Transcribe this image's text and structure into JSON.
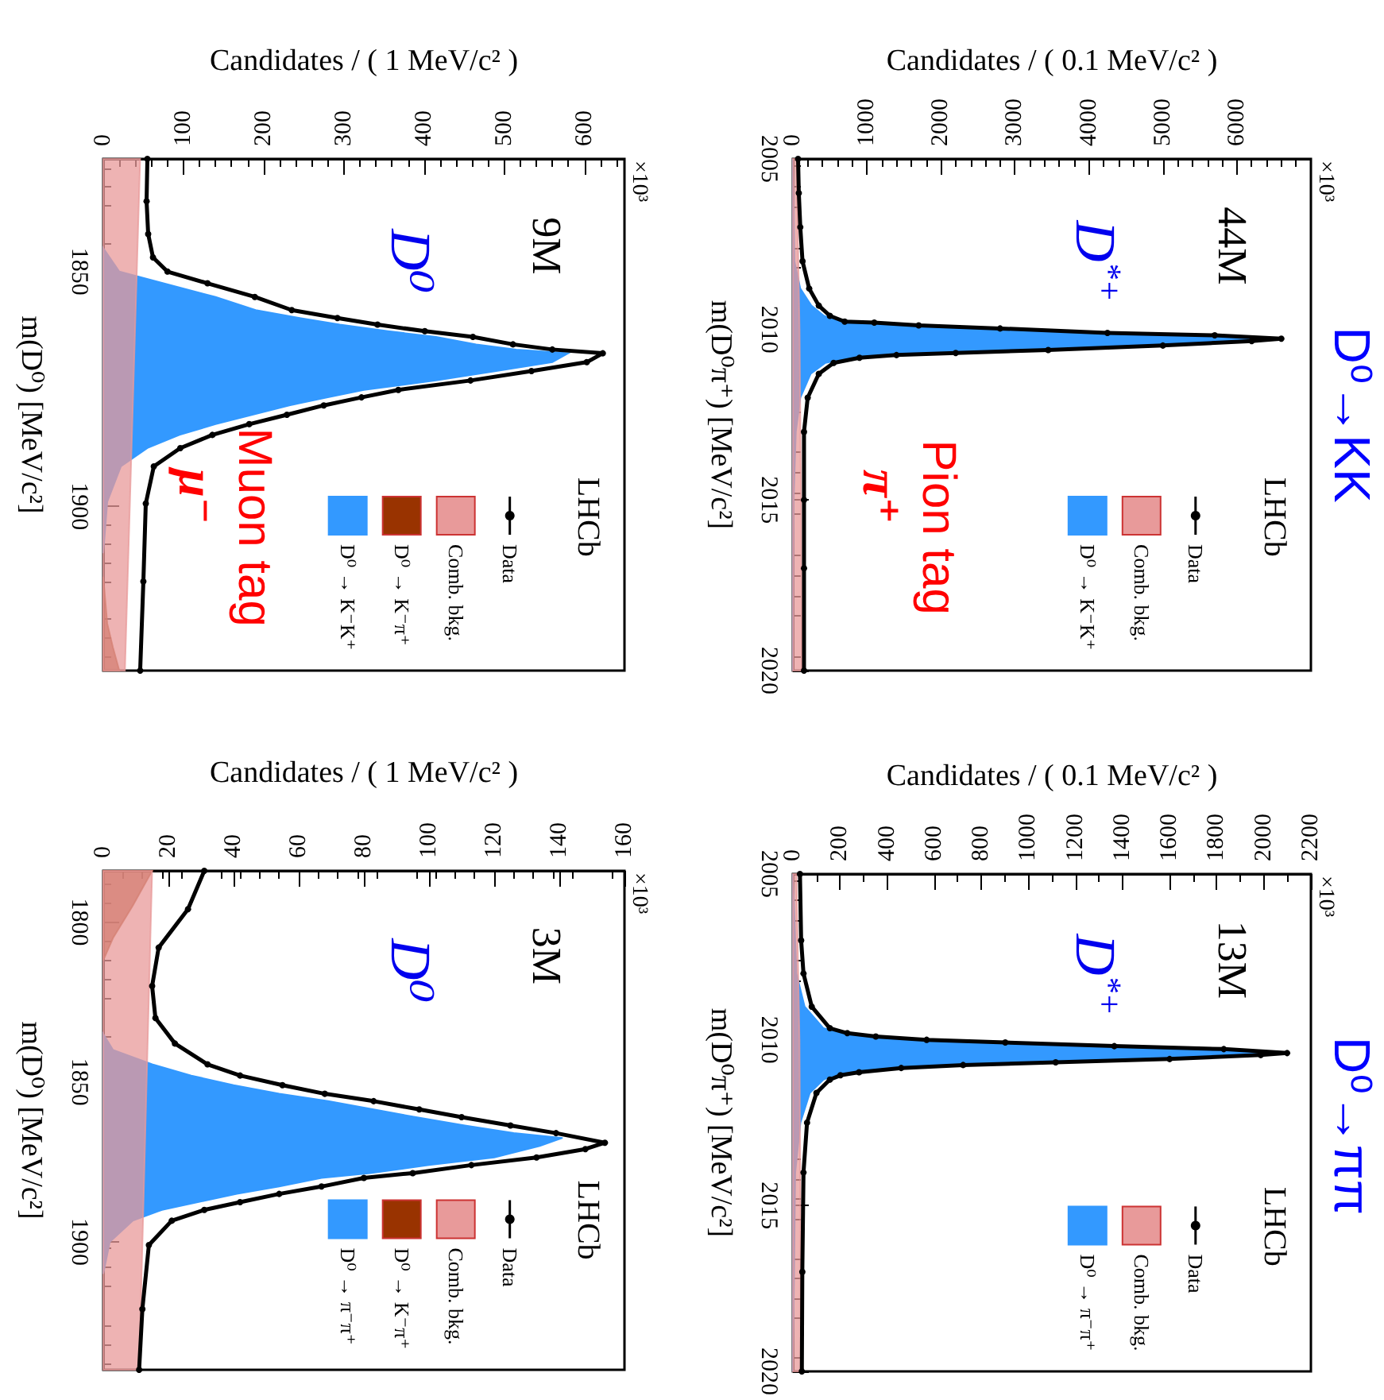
{
  "chart_data": [
    {
      "type": "line",
      "orientation": "horizontal",
      "xlabel": "Candidates / ( 1 MeV/c² )",
      "ylabel": "m(D⁰) [MeV/c²]",
      "xlim": [
        0,
        650
      ],
      "xticks": [
        0,
        100,
        200,
        300,
        400,
        500,
        600
      ],
      "ylim": [
        1935,
        1826
      ],
      "yticks": [
        1850,
        1900
      ],
      "legend": "bottom right",
      "grid": false,
      "annotations": [
        "9M",
        "D⁰",
        "LHCb",
        "Muon tag",
        "μ⁻",
        "×10³"
      ],
      "series": [
        {
          "name": "D⁰ → K⁻K⁺",
          "type": "area",
          "color": "#3399ff",
          "x": [
            1845,
            1850,
            1852.5,
            1855.4,
            1858.2,
            1859.9,
            1861.3,
            1862.7,
            1863.9,
            1865.5,
            1866.6,
            1867.4,
            1869.3,
            1871.2,
            1873.2,
            1875.2,
            1876.8,
            1878.5,
            1880.5,
            1882.5,
            1884.8,
            1887.6,
            1891.5,
            1899,
            1910
          ],
          "values": [
            0,
            20,
            75,
            140,
            190,
            245,
            295,
            355,
            415,
            465,
            515,
            580,
            560,
            490,
            415,
            325,
            280,
            232,
            186,
            140,
            95,
            55,
            22,
            5,
            0
          ]
        },
        {
          "name": "D⁰ → K⁻π⁺",
          "type": "area",
          "color": "#993300",
          "x": [
            1915,
            1925,
            1930,
            1935
          ],
          "values": [
            0,
            5,
            12,
            20
          ]
        },
        {
          "name": "Comb. bkg.",
          "type": "area",
          "color": "#e89a9a",
          "x": [
            1826,
            1935
          ],
          "values": [
            46,
            27
          ]
        },
        {
          "name": "Data",
          "marker": "circle",
          "color": "#000000",
          "x": [
            1826,
            1835,
            1842,
            1847,
            1850,
            1852.5,
            1855.4,
            1858.2,
            1859.9,
            1861.3,
            1862.7,
            1863.9,
            1865.5,
            1866.6,
            1867.4,
            1869.3,
            1871.2,
            1873.2,
            1875.2,
            1876.8,
            1878.5,
            1880.5,
            1882.5,
            1884.8,
            1887.6,
            1891.5,
            1899.4,
            1916,
            1935
          ],
          "values": [
            55,
            54,
            56,
            62,
            80,
            130,
            189,
            235,
            292,
            342,
            401,
            461,
            511,
            560,
            623,
            603,
            534,
            458,
            368,
            322,
            275,
            229,
            182,
            136,
            96,
            63,
            53,
            50,
            46
          ]
        }
      ]
    },
    {
      "type": "line",
      "orientation": "horizontal",
      "title": "D⁰→KK",
      "xlabel": "Candidates / ( 0.1 MeV/c² )",
      "ylabel": "m(D⁰π⁺) [MeV/c²]",
      "xlim": [
        0,
        7000
      ],
      "xticks": [
        0,
        1000,
        2000,
        3000,
        4000,
        5000,
        6000
      ],
      "ylim": [
        2020,
        2005
      ],
      "yticks": [
        2005,
        2010,
        2015,
        2020
      ],
      "legend": "bottom right",
      "grid": false,
      "annotations": [
        "44M",
        "D$^{*+}$",
        "LHCb",
        "Pion tag",
        "π⁺",
        "×10³"
      ],
      "series": [
        {
          "name": "D⁰ → K⁻K⁺",
          "type": "area",
          "color": "#3399ff",
          "x": [
            2005,
            2008,
            2008.8,
            2009.3,
            2009.6,
            2009.77,
            2009.8,
            2009.88,
            2009.97,
            2010.1,
            2010.17,
            2010.27,
            2010.34,
            2010.47,
            2010.6,
            2010.69,
            2010.75,
            2010.83,
            2010.98,
            2011.3,
            2012,
            2013,
            2015,
            2020
          ],
          "values": [
            0,
            20,
            100,
            250,
            420,
            620,
            1000,
            1630,
            2700,
            4160,
            5630,
            6500,
            6140,
            4880,
            3350,
            2120,
            1300,
            790,
            440,
            240,
            100,
            40,
            10,
            0
          ]
        },
        {
          "name": "Comb. bkg.",
          "type": "area",
          "color": "#e89a9a",
          "x": [
            2005,
            2010,
            2015,
            2020
          ],
          "values": [
            50,
            90,
            110,
            120
          ]
        },
        {
          "name": "Data",
          "marker": "circle",
          "color": "#000000",
          "x": [
            2005,
            2006,
            2007,
            2008,
            2008.8,
            2009.3,
            2009.6,
            2009.77,
            2009.8,
            2009.88,
            2009.97,
            2010.1,
            2010.17,
            2010.27,
            2010.34,
            2010.47,
            2010.6,
            2010.69,
            2010.75,
            2010.83,
            2010.98,
            2011.3,
            2012,
            2013,
            2015,
            2017,
            2020
          ],
          "values": [
            70,
            80,
            100,
            130,
            220,
            350,
            500,
            700,
            1100,
            1700,
            2800,
            4250,
            5700,
            6600,
            6200,
            5000,
            3450,
            2200,
            1400,
            900,
            550,
            350,
            200,
            150,
            150,
            150,
            150
          ]
        }
      ]
    },
    {
      "type": "line",
      "orientation": "horizontal",
      "xlabel": "Candidates / ( 1 MeV/c² )",
      "ylabel": "m(D⁰) [MeV/c²]",
      "xlim": [
        0,
        160
      ],
      "xticks": [
        0,
        20,
        40,
        60,
        80,
        100,
        120,
        140,
        160
      ],
      "ylim": [
        1940,
        1784
      ],
      "yticks": [
        1800,
        1850,
        1900
      ],
      "legend": "bottom right",
      "grid": false,
      "annotations": [
        "3M",
        "D⁰",
        "LHCb",
        "×10³"
      ],
      "series": [
        {
          "name": "D⁰ → π⁻π⁺",
          "type": "area",
          "color": "#3399ff",
          "x": [
            1835,
            1840,
            1844.5,
            1848,
            1851,
            1853.7,
            1856,
            1858.6,
            1861,
            1863.6,
            1866,
            1867.5,
            1870,
            1873.6,
            1876,
            1878.5,
            1880,
            1882.7,
            1885,
            1887.6,
            1890,
            1893.4,
            1900,
            1910
          ],
          "values": [
            0,
            3,
            15,
            27,
            40,
            54,
            69,
            83,
            96,
            111,
            126,
            141,
            134,
            120,
            100,
            82,
            67,
            54,
            41,
            29,
            18,
            9,
            2,
            0
          ]
        },
        {
          "name": "D⁰ → K⁻π⁺",
          "type": "area",
          "color": "#993300",
          "x": [
            1784,
            1795,
            1805,
            1812
          ],
          "values": [
            15,
            9,
            3,
            0
          ]
        },
        {
          "name": "Comb. bkg.",
          "type": "area",
          "color": "#e89a9a",
          "x": [
            1784,
            1940
          ],
          "values": [
            15,
            11
          ]
        },
        {
          "name": "Data",
          "marker": "circle",
          "color": "#000000",
          "x": [
            1784,
            1796,
            1808,
            1820,
            1830,
            1838,
            1844.5,
            1848,
            1851,
            1853.7,
            1856,
            1858.6,
            1861,
            1863.6,
            1866,
            1869,
            1871,
            1873.6,
            1876,
            1878.5,
            1880,
            1882.7,
            1885,
            1887.6,
            1890,
            1893.4,
            1901,
            1921,
            1940
          ],
          "values": [
            31,
            26,
            17,
            15,
            16,
            22,
            32,
            42,
            55,
            68,
            83,
            97,
            110,
            125,
            139,
            154,
            148,
            133,
            113,
            95,
            80,
            67,
            54,
            42,
            31,
            21,
            14,
            12,
            11
          ]
        }
      ]
    },
    {
      "type": "line",
      "orientation": "horizontal",
      "title": "D⁰→ππ",
      "xlabel": "Candidates / ( 0.1 MeV/c² )",
      "ylabel": "m(D⁰π⁺) [MeV/c²]",
      "xlim": [
        0,
        2200
      ],
      "xticks": [
        0,
        200,
        400,
        600,
        800,
        1000,
        1200,
        1400,
        1600,
        1800,
        2000,
        2200
      ],
      "ylim": [
        2020,
        2005
      ],
      "yticks": [
        2005,
        2010,
        2015,
        2020
      ],
      "legend": "bottom right",
      "grid": false,
      "annotations": [
        "13M",
        "D$^{*+}$",
        "LHCb",
        "×10³"
      ],
      "series": [
        {
          "name": "D⁰ → π⁻π⁺",
          "type": "area",
          "color": "#3399ff",
          "x": [
            2005,
            2008,
            2009,
            2009.65,
            2009.8,
            2009.9,
            2010.0,
            2010.08,
            2010.19,
            2010.28,
            2010.4,
            2010.46,
            2010.58,
            2010.68,
            2010.76,
            2010.85,
            2010.98,
            2011.07,
            2011.2,
            2011.6,
            2012.5,
            2014,
            2020
          ],
          "values": [
            0,
            15,
            50,
            130,
            205,
            325,
            540,
            875,
            1335,
            1800,
            2070,
            1960,
            1570,
            1090,
            695,
            430,
            255,
            175,
            130,
            72,
            32,
            10,
            0
          ]
        },
        {
          "name": "Comb. bkg.",
          "type": "area",
          "color": "#e89a9a",
          "x": [
            2005,
            2010,
            2015,
            2020
          ],
          "values": [
            15,
            28,
            32,
            34
          ]
        },
        {
          "name": "Data",
          "marker": "circle",
          "color": "#000000",
          "x": [
            2005,
            2007,
            2008,
            2009,
            2009.65,
            2009.8,
            2009.9,
            2010.0,
            2010.08,
            2010.19,
            2010.28,
            2010.4,
            2010.46,
            2010.58,
            2010.68,
            2010.76,
            2010.85,
            2010.98,
            2011.07,
            2011.2,
            2011.6,
            2012.5,
            2014,
            2017,
            2020
          ],
          "values": [
            30,
            35,
            45,
            80,
            157,
            231,
            352,
            568,
            902,
            1365,
            1830,
            2099,
            1987,
            1600,
            1116,
            723,
            460,
            281,
            202,
            157,
            100,
            60,
            45,
            40,
            38
          ]
        }
      ]
    }
  ]
}
